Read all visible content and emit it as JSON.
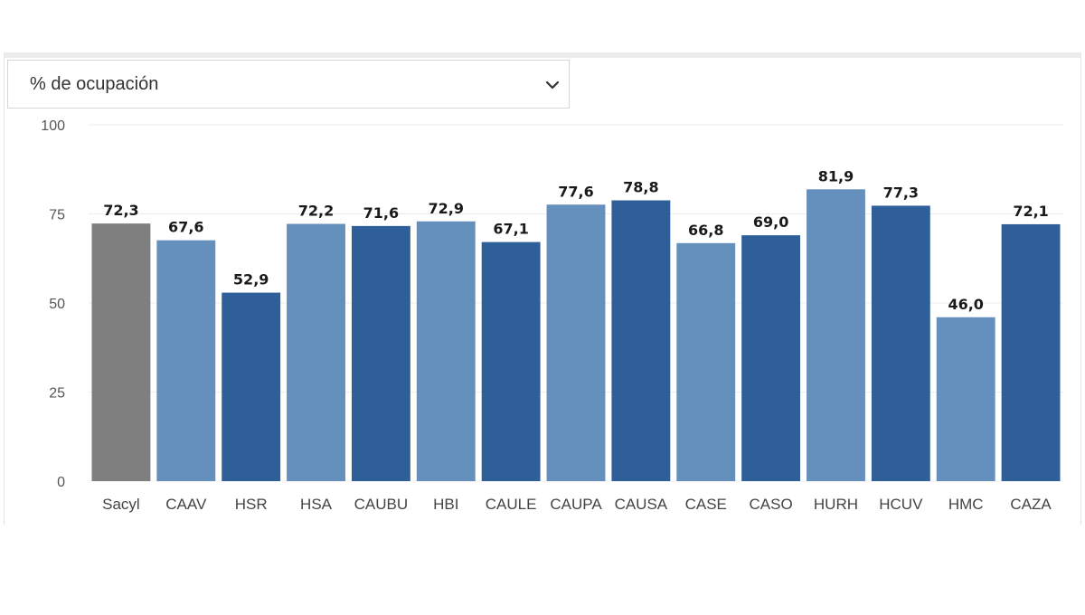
{
  "selector": {
    "value": "% de ocupación",
    "icon": "chevron-down-icon"
  },
  "chart_data": {
    "type": "bar",
    "title": "",
    "xlabel": "",
    "ylabel": "",
    "ylim": [
      0,
      100
    ],
    "yticks": [
      "0",
      "25",
      "50",
      "75",
      "100"
    ],
    "grid": true,
    "categories": [
      "Sacyl",
      "CAAV",
      "HSR",
      "HSA",
      "CAUBU",
      "HBI",
      "CAULE",
      "CAUPA",
      "CAUSA",
      "CASE",
      "CASO",
      "HURH",
      "HCUV",
      "HMC",
      "CAZA"
    ],
    "values": [
      72.3,
      67.6,
      52.9,
      72.2,
      71.6,
      72.9,
      67.1,
      77.6,
      78.8,
      66.8,
      69.0,
      81.9,
      77.3,
      46.0,
      72.1
    ],
    "value_labels": [
      "72,3",
      "67,6",
      "52,9",
      "72,2",
      "71,6",
      "72,9",
      "67,1",
      "77,6",
      "78,8",
      "66,8",
      "69,0",
      "81,9",
      "77,3",
      "46,0",
      "72,1"
    ],
    "colors": [
      "#7f7f7f",
      "#6590bd",
      "#2e5f99",
      "#6590bd",
      "#2e5f99",
      "#6590bd",
      "#2e5f99",
      "#6590bd",
      "#2e5f99",
      "#6590bd",
      "#2e5f99",
      "#6590bd",
      "#2e5f99",
      "#6590bd",
      "#2e5f99"
    ]
  }
}
